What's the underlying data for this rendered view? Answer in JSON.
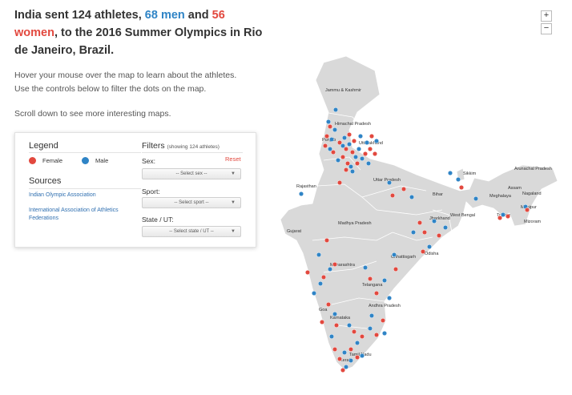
{
  "headline": {
    "part1": "India sent 124 athletes, ",
    "men": "68 men",
    "and": " and ",
    "women": "56 women",
    "part2": ", to the 2016 Summer Olympics in Rio de Janeiro, Brazil."
  },
  "intro": {
    "line1": "Hover your mouse over the map to learn about the athletes.",
    "line2": "Use the controls below to filter the dots on the map.",
    "scroll": "Scroll down to see more interesting maps."
  },
  "legend": {
    "title": "Legend",
    "female": "Female",
    "male": "Male"
  },
  "sources": {
    "title": "Sources",
    "link1": "Indian Olympic Association",
    "link2": "International Association of Athletics Federations"
  },
  "filters": {
    "title": "Filters",
    "count_note": "(showing 124 athletes)",
    "reset": "Reset",
    "sex_label": "Sex:",
    "sex_value": "-- Select sex --",
    "sport_label": "Sport:",
    "sport_value": "-- Select sport --",
    "state_label": "State / UT:",
    "state_value": "-- Select state / UT --"
  },
  "zoom": {
    "in": "+",
    "out": "−"
  },
  "colors": {
    "female": "#e2483e",
    "male": "#2f84c6",
    "land": "#d9d9d9",
    "border": "#ffffff"
  },
  "map": {
    "states": [
      "Jammu & Kashmir",
      "Himachal Pradesh",
      "Punjab",
      "Uttarakhand",
      "Rajasthan",
      "Uttar Pradesh",
      "Sikkim",
      "Arunachal Pradesh",
      "Assam",
      "Nagaland",
      "Meghalaya",
      "Manipur",
      "Bihar",
      "West Bengal",
      "Tripura",
      "Mizoram",
      "Jharkhand",
      "Gujarat",
      "Madhya Pradesh",
      "Chhattisgarh",
      "Odisha",
      "Maharashtra",
      "Telangana",
      "Goa",
      "Andhra Pradesh",
      "Karnataka",
      "Tamil Nadu",
      "Kerala"
    ]
  }
}
